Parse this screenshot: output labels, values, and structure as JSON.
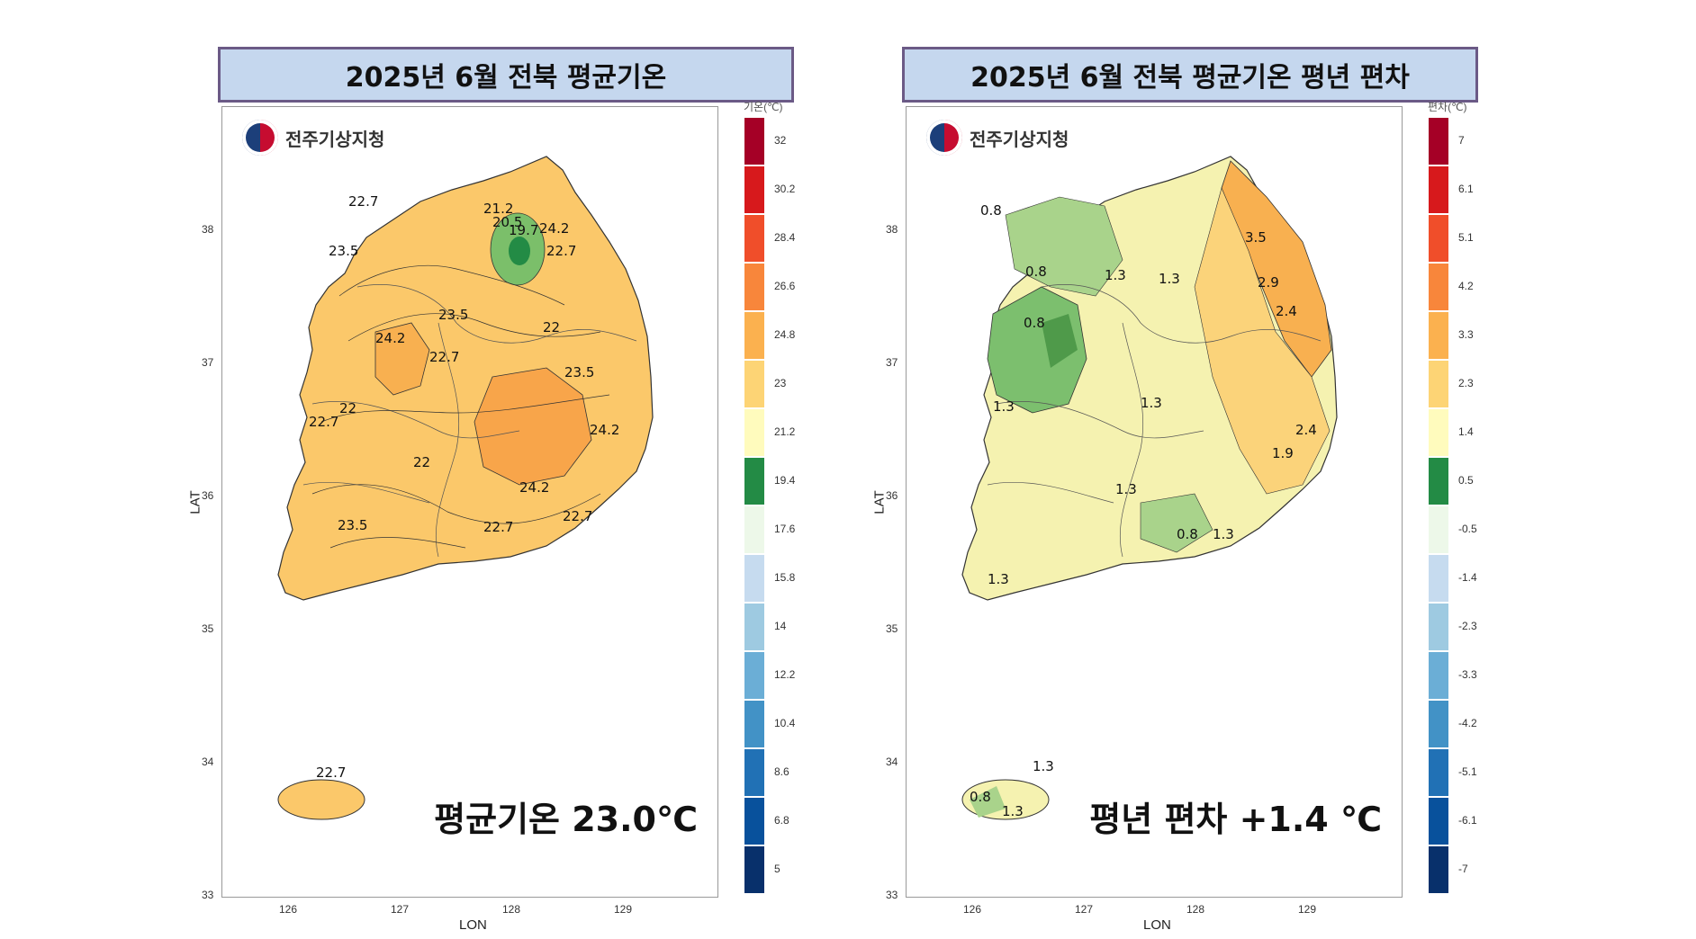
{
  "left": {
    "title": "2025년 6월 전북 평균기온",
    "logo_text": "전주기상지청",
    "summary": "평균기온 23.0℃",
    "legend_unit": "기온(℃)",
    "legend": [
      {
        "label": "32",
        "color": "#a50026"
      },
      {
        "label": "30.2",
        "color": "#d7191c"
      },
      {
        "label": "28.4",
        "color": "#f04e2a"
      },
      {
        "label": "26.6",
        "color": "#f8863b"
      },
      {
        "label": "24.8",
        "color": "#fbb14f"
      },
      {
        "label": "23",
        "color": "#fdd475"
      },
      {
        "label": "21.2",
        "color": "#fffbbd"
      },
      {
        "label": "19.4",
        "color": "#238b45"
      },
      {
        "label": "17.6",
        "color": "#edf8e9"
      },
      {
        "label": "15.8",
        "color": "#c6dbef"
      },
      {
        "label": "14",
        "color": "#9ecae1"
      },
      {
        "label": "12.2",
        "color": "#6baed6"
      },
      {
        "label": "10.4",
        "color": "#4292c6"
      },
      {
        "label": "8.6",
        "color": "#2171b5"
      },
      {
        "label": "6.8",
        "color": "#08519c"
      },
      {
        "label": "5",
        "color": "#08306b"
      }
    ],
    "contour_labels": [
      "22.7",
      "23.5",
      "21.2",
      "20.5",
      "19.7",
      "24.2",
      "22.7",
      "22",
      "23.5",
      "24.2",
      "22.7",
      "22",
      "23.5",
      "24.2",
      "22.7",
      "22",
      "24.2",
      "22.7",
      "23.5",
      "22.7",
      "22.7"
    ],
    "region_fill": "#fbc86a"
  },
  "right": {
    "title": "2025년 6월 전북 평균기온 평년 편차",
    "logo_text": "전주기상지청",
    "summary": "평년 편차 +1.4 ℃",
    "legend_unit": "편차(℃)",
    "legend": [
      {
        "label": "7",
        "color": "#a50026"
      },
      {
        "label": "6.1",
        "color": "#d7191c"
      },
      {
        "label": "5.1",
        "color": "#f04e2a"
      },
      {
        "label": "4.2",
        "color": "#f8863b"
      },
      {
        "label": "3.3",
        "color": "#fbb14f"
      },
      {
        "label": "2.3",
        "color": "#fdd475"
      },
      {
        "label": "1.4",
        "color": "#fffbbd"
      },
      {
        "label": "0.5",
        "color": "#238b45"
      },
      {
        "label": "-0.5",
        "color": "#edf8e9"
      },
      {
        "label": "-1.4",
        "color": "#c6dbef"
      },
      {
        "label": "-2.3",
        "color": "#9ecae1"
      },
      {
        "label": "-3.3",
        "color": "#6baed6"
      },
      {
        "label": "-4.2",
        "color": "#4292c6"
      },
      {
        "label": "-5.1",
        "color": "#2171b5"
      },
      {
        "label": "-6.1",
        "color": "#08519c"
      },
      {
        "label": "-7",
        "color": "#08306b"
      }
    ],
    "contour_labels": [
      "3.5",
      "2.9",
      "2.4",
      "1.3",
      "1.3",
      "0.8",
      "0.8",
      "0.8",
      "1.3",
      "2.4",
      "1.9",
      "1.3",
      "1.3",
      "0.8",
      "1.3",
      "1.3",
      "1.3",
      "0.8",
      "1.3"
    ],
    "region_fill": "#f5f2b0"
  },
  "axes": {
    "lon_ticks": [
      "126",
      "127",
      "128",
      "129"
    ],
    "lat_ticks": [
      "38",
      "37",
      "36",
      "35",
      "34",
      "33"
    ],
    "xlabel": "LON",
    "ylabel": "LAT"
  }
}
